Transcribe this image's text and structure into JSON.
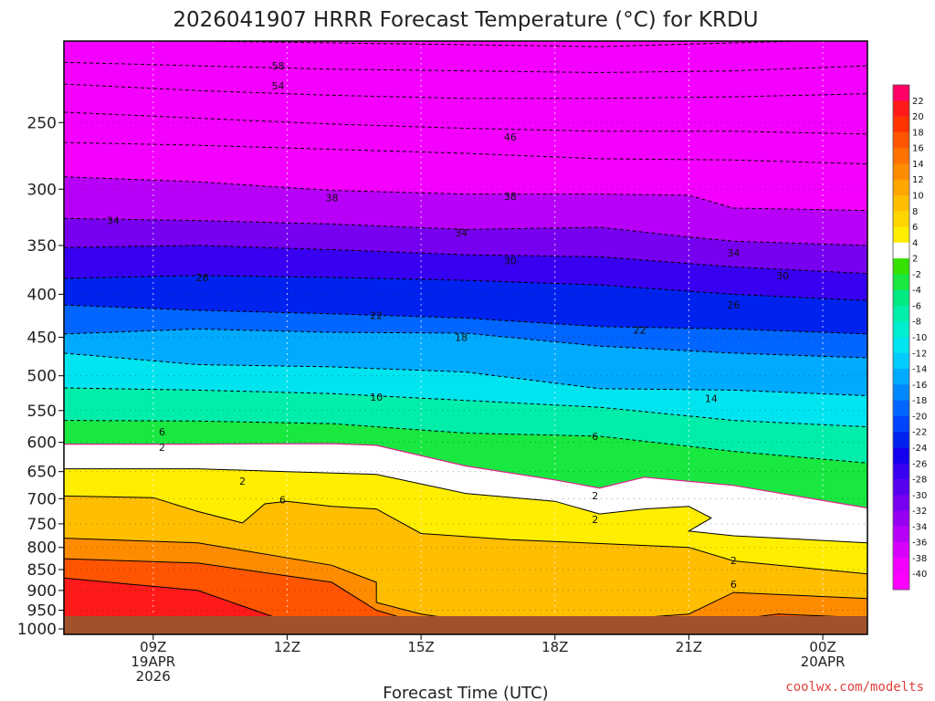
{
  "chart_data": {
    "type": "heatmap",
    "title": "2026041907 HRRR Forecast Temperature (°C) for KRDU",
    "xlabel": "Forecast Time (UTC)",
    "ylabel": "",
    "credit": "coolwx.com/modelts",
    "credit_color": "#e0403c",
    "x_range_hours": [
      7,
      25
    ],
    "x_ticks": [
      {
        "hour": 9,
        "lines": [
          "09Z",
          "19APR",
          "2026"
        ]
      },
      {
        "hour": 12,
        "lines": [
          "12Z"
        ]
      },
      {
        "hour": 15,
        "lines": [
          "15Z"
        ]
      },
      {
        "hour": 18,
        "lines": [
          "18Z"
        ]
      },
      {
        "hour": 21,
        "lines": [
          "21Z"
        ]
      },
      {
        "hour": 24,
        "lines": [
          "00Z",
          "20APR"
        ]
      }
    ],
    "y_scale": "log-pressure",
    "y_range_hpa": [
      1015,
      200
    ],
    "y_ticks": [
      250,
      300,
      350,
      400,
      450,
      500,
      550,
      600,
      650,
      700,
      750,
      800,
      850,
      900,
      950,
      1000
    ],
    "ground_color": "#a0522d",
    "colorbar": {
      "labels": [
        22,
        20,
        18,
        16,
        14,
        12,
        10,
        8,
        6,
        4,
        2,
        -2,
        -4,
        -6,
        -8,
        -10,
        -12,
        -14,
        -16,
        -18,
        -20,
        -22,
        -24,
        -26,
        -28,
        -30,
        -32,
        -34,
        -36,
        -38,
        -40
      ],
      "colors": [
        "#ff0066",
        "#ff1a1a",
        "#ff3300",
        "#ff5500",
        "#ff7200",
        "#ff8c00",
        "#ffa600",
        "#ffbe00",
        "#ffd500",
        "#ffee00",
        "#ffffff",
        "#36e000",
        "#18e840",
        "#00e882",
        "#00eeaa",
        "#00eed0",
        "#00e4f0",
        "#00ccff",
        "#00aaff",
        "#0088ff",
        "#0066ff",
        "#0044ff",
        "#0022ee",
        "#1400ee",
        "#3800f0",
        "#5800f0",
        "#7800f0",
        "#9800f4",
        "#b800f8",
        "#d800fc",
        "#f400ff",
        "#ff00ff"
      ]
    },
    "freezing_line_color": "#e02090",
    "isotherms": [
      {
        "temp": -58,
        "points": [
          [
            7,
            198
          ],
          [
            10,
            200
          ],
          [
            13,
            201
          ],
          [
            16,
            202
          ],
          [
            19,
            203
          ],
          [
            22,
            201
          ],
          [
            25,
            199
          ]
        ]
      },
      {
        "temp": -54,
        "points": [
          [
            7,
            212
          ],
          [
            10,
            214
          ],
          [
            13,
            216
          ],
          [
            16,
            217
          ],
          [
            19,
            218
          ],
          [
            22,
            217
          ],
          [
            25,
            214
          ]
        ]
      },
      {
        "temp": -50,
        "points": [
          [
            7,
            225
          ],
          [
            10,
            229
          ],
          [
            13,
            232
          ],
          [
            16,
            234
          ],
          [
            19,
            234
          ],
          [
            22,
            233
          ],
          [
            25,
            231
          ]
        ]
      },
      {
        "temp": -46,
        "points": [
          [
            7,
            243
          ],
          [
            10,
            247
          ],
          [
            13,
            251
          ],
          [
            16,
            254
          ],
          [
            19,
            256
          ],
          [
            22,
            256
          ],
          [
            25,
            258
          ]
        ]
      },
      {
        "temp": -42,
        "points": [
          [
            7,
            264
          ],
          [
            10,
            266
          ],
          [
            13,
            269
          ],
          [
            16,
            272
          ],
          [
            19,
            276
          ],
          [
            22,
            277
          ],
          [
            25,
            280
          ]
        ]
      },
      {
        "temp": -38,
        "points": [
          [
            7,
            290
          ],
          [
            10,
            294
          ],
          [
            13,
            301
          ],
          [
            16,
            304
          ],
          [
            19,
            304
          ],
          [
            21,
            305
          ],
          [
            22,
            316
          ],
          [
            25,
            318
          ]
        ]
      },
      {
        "temp": -34,
        "points": [
          [
            7,
            325
          ],
          [
            10,
            327
          ],
          [
            13,
            330
          ],
          [
            16,
            335
          ],
          [
            19,
            333
          ],
          [
            21,
            342
          ],
          [
            22,
            346
          ],
          [
            25,
            350
          ]
        ]
      },
      {
        "temp": -30,
        "points": [
          [
            7,
            352
          ],
          [
            10,
            350
          ],
          [
            13,
            354
          ],
          [
            16,
            359
          ],
          [
            19,
            361
          ],
          [
            22,
            371
          ],
          [
            25,
            378
          ]
        ]
      },
      {
        "temp": -26,
        "points": [
          [
            7,
            383
          ],
          [
            10,
            380
          ],
          [
            13,
            382
          ],
          [
            16,
            385
          ],
          [
            19,
            390
          ],
          [
            22,
            400
          ],
          [
            25,
            407
          ]
        ]
      },
      {
        "temp": -22,
        "points": [
          [
            7,
            412
          ],
          [
            10,
            418
          ],
          [
            13,
            422
          ],
          [
            16,
            427
          ],
          [
            19,
            437
          ],
          [
            22,
            440
          ],
          [
            25,
            446
          ]
        ]
      },
      {
        "temp": -18,
        "points": [
          [
            7,
            446
          ],
          [
            10,
            440
          ],
          [
            13,
            444
          ],
          [
            16,
            445
          ],
          [
            19,
            461
          ],
          [
            22,
            470
          ],
          [
            25,
            476
          ]
        ]
      },
      {
        "temp": -14,
        "points": [
          [
            7,
            470
          ],
          [
            10,
            485
          ],
          [
            13,
            488
          ],
          [
            16,
            495
          ],
          [
            19,
            518
          ],
          [
            22,
            520
          ],
          [
            25,
            528
          ]
        ]
      },
      {
        "temp": -10,
        "points": [
          [
            7,
            517
          ],
          [
            10,
            520
          ],
          [
            13,
            525
          ],
          [
            16,
            535
          ],
          [
            19,
            545
          ],
          [
            22,
            565
          ],
          [
            25,
            575
          ]
        ]
      },
      {
        "temp": -6,
        "points": [
          [
            7,
            565
          ],
          [
            10,
            566
          ],
          [
            13,
            570
          ],
          [
            16,
            585
          ],
          [
            19,
            590
          ],
          [
            22,
            615
          ],
          [
            25,
            635
          ]
        ]
      },
      {
        "temp": -2,
        "points": [
          [
            7,
            603
          ],
          [
            10,
            603
          ],
          [
            13,
            602
          ],
          [
            14,
            605
          ],
          [
            16,
            640
          ],
          [
            18,
            665
          ],
          [
            19,
            680
          ],
          [
            20,
            660
          ],
          [
            22,
            675
          ],
          [
            25,
            718
          ]
        ]
      },
      {
        "temp": 2,
        "points": [
          [
            7,
            645
          ],
          [
            10,
            645
          ],
          [
            12,
            650
          ],
          [
            14,
            655
          ],
          [
            16,
            690
          ],
          [
            18,
            705
          ],
          [
            19,
            730
          ],
          [
            20,
            720
          ],
          [
            21,
            715
          ],
          [
            21.5,
            738
          ],
          [
            21,
            765
          ],
          [
            22,
            775
          ],
          [
            25,
            790
          ]
        ]
      },
      {
        "temp": 6,
        "points": [
          [
            7,
            695
          ],
          [
            9,
            698
          ],
          [
            10,
            725
          ],
          [
            11,
            748
          ],
          [
            11.5,
            710
          ],
          [
            12,
            705
          ],
          [
            13,
            715
          ],
          [
            14,
            720
          ],
          [
            15,
            770
          ],
          [
            17,
            783
          ],
          [
            21,
            800
          ],
          [
            22,
            830
          ],
          [
            24,
            850
          ],
          [
            25,
            860
          ]
        ]
      },
      {
        "temp": 10,
        "points": [
          [
            7,
            780
          ],
          [
            10,
            790
          ],
          [
            13,
            840
          ],
          [
            14,
            880
          ],
          [
            14,
            930
          ],
          [
            15,
            960
          ],
          [
            17,
            995
          ],
          [
            21,
            960
          ],
          [
            22,
            905
          ],
          [
            25,
            920
          ]
        ]
      },
      {
        "temp": 14,
        "points": [
          [
            7,
            825
          ],
          [
            10,
            835
          ],
          [
            13,
            880
          ],
          [
            14,
            950
          ],
          [
            15,
            985
          ],
          [
            17,
            1005
          ],
          [
            21,
            990
          ],
          [
            23,
            960
          ],
          [
            25,
            970
          ]
        ]
      },
      {
        "temp": 18,
        "points": [
          [
            7,
            870
          ],
          [
            10,
            900
          ],
          [
            12,
            980
          ],
          [
            13,
            1005
          ]
        ]
      }
    ],
    "labeled_contours": [
      {
        "text": "58",
        "x": 11.8,
        "p": 214
      },
      {
        "text": "54",
        "x": 11.8,
        "p": 226
      },
      {
        "text": "46",
        "x": 17.0,
        "p": 260
      },
      {
        "text": "38",
        "x": 13.0,
        "p": 307
      },
      {
        "text": "38",
        "x": 17.0,
        "p": 306
      },
      {
        "text": "34",
        "x": 8.1,
        "p": 327
      },
      {
        "text": "34",
        "x": 15.9,
        "p": 338
      },
      {
        "text": "34",
        "x": 22.0,
        "p": 357
      },
      {
        "text": "30",
        "x": 17.0,
        "p": 365
      },
      {
        "text": "30",
        "x": 23.1,
        "p": 380
      },
      {
        "text": "26",
        "x": 10.1,
        "p": 382
      },
      {
        "text": "26",
        "x": 22.0,
        "p": 412
      },
      {
        "text": "22",
        "x": 14.0,
        "p": 424
      },
      {
        "text": "22",
        "x": 19.9,
        "p": 441
      },
      {
        "text": "18",
        "x": 15.9,
        "p": 450
      },
      {
        "text": "14",
        "x": 21.5,
        "p": 532
      },
      {
        "text": "10",
        "x": 14.0,
        "p": 530
      },
      {
        "text": "6",
        "x": 9.2,
        "p": 583
      },
      {
        "text": "6",
        "x": 18.9,
        "p": 590
      },
      {
        "text": "2",
        "x": 9.2,
        "p": 608
      },
      {
        "text": "2",
        "x": 11.0,
        "p": 667
      },
      {
        "text": "2",
        "x": 18.9,
        "p": 694
      },
      {
        "text": "2",
        "x": 18.9,
        "p": 741
      },
      {
        "text": "2",
        "x": 22.0,
        "p": 829
      },
      {
        "text": "6",
        "x": 11.9,
        "p": 702
      },
      {
        "text": "6",
        "x": 22.0,
        "p": 885
      }
    ]
  }
}
